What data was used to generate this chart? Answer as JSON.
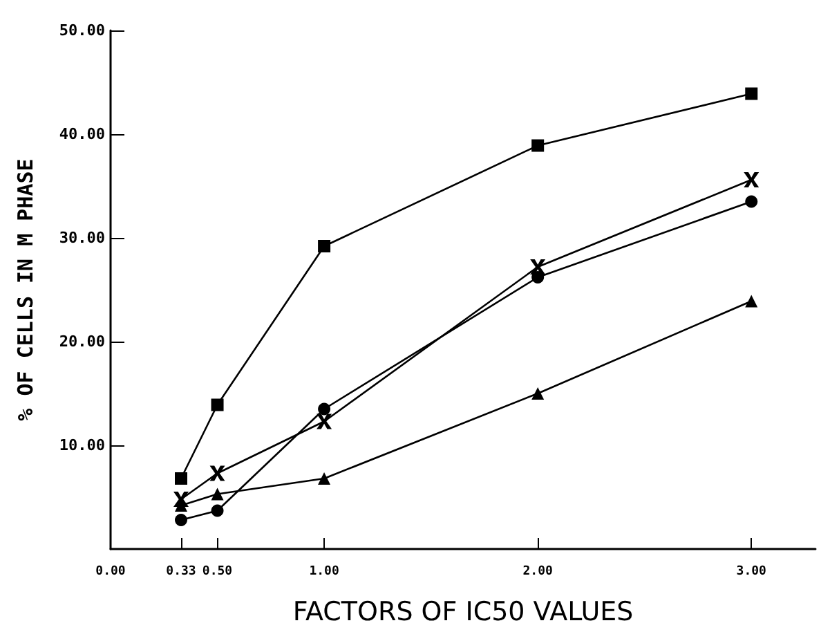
{
  "chart_data": {
    "type": "line",
    "xlabel": "FACTORS OF IC50 VALUES",
    "ylabel": "% OF CELLS IN M PHASE",
    "x": [
      0.33,
      0.5,
      1,
      2,
      3
    ],
    "series": [
      {
        "color": "#000000",
        "marker": "square",
        "values": [
          6.8,
          13.9,
          29.2,
          38.9,
          43.9
        ]
      },
      {
        "color": "#000000",
        "marker": "cross",
        "values": [
          4.8,
          7.3,
          12.3,
          27.2,
          35.6
        ]
      },
      {
        "color": "#000000",
        "marker": "circle",
        "values": [
          2.8,
          3.7,
          13.5,
          26.2,
          33.5
        ]
      },
      {
        "color": "#000000",
        "marker": "triangle",
        "values": [
          4.2,
          5.3,
          6.8,
          15.0,
          23.9
        ]
      }
    ],
    "xlim": [
      0,
      3.3
    ],
    "xticks": [
      {
        "value": 0,
        "label": "0.00"
      },
      {
        "value": 0.33,
        "label": "0.33"
      },
      {
        "value": 0.5,
        "label": "0.50"
      },
      {
        "value": 1,
        "label": "1.00"
      },
      {
        "value": 2,
        "label": "2.00"
      },
      {
        "value": 3,
        "label": "3.00"
      }
    ],
    "ylim": [
      0,
      50
    ],
    "yticks": [
      {
        "value": 10,
        "label": "10.00"
      },
      {
        "value": 20,
        "label": "20.00"
      },
      {
        "value": 30,
        "label": "30.00"
      },
      {
        "value": 40,
        "label": "40.00"
      },
      {
        "value": 50,
        "label": "50.00"
      }
    ],
    "grid": false,
    "line_style": "solid"
  }
}
